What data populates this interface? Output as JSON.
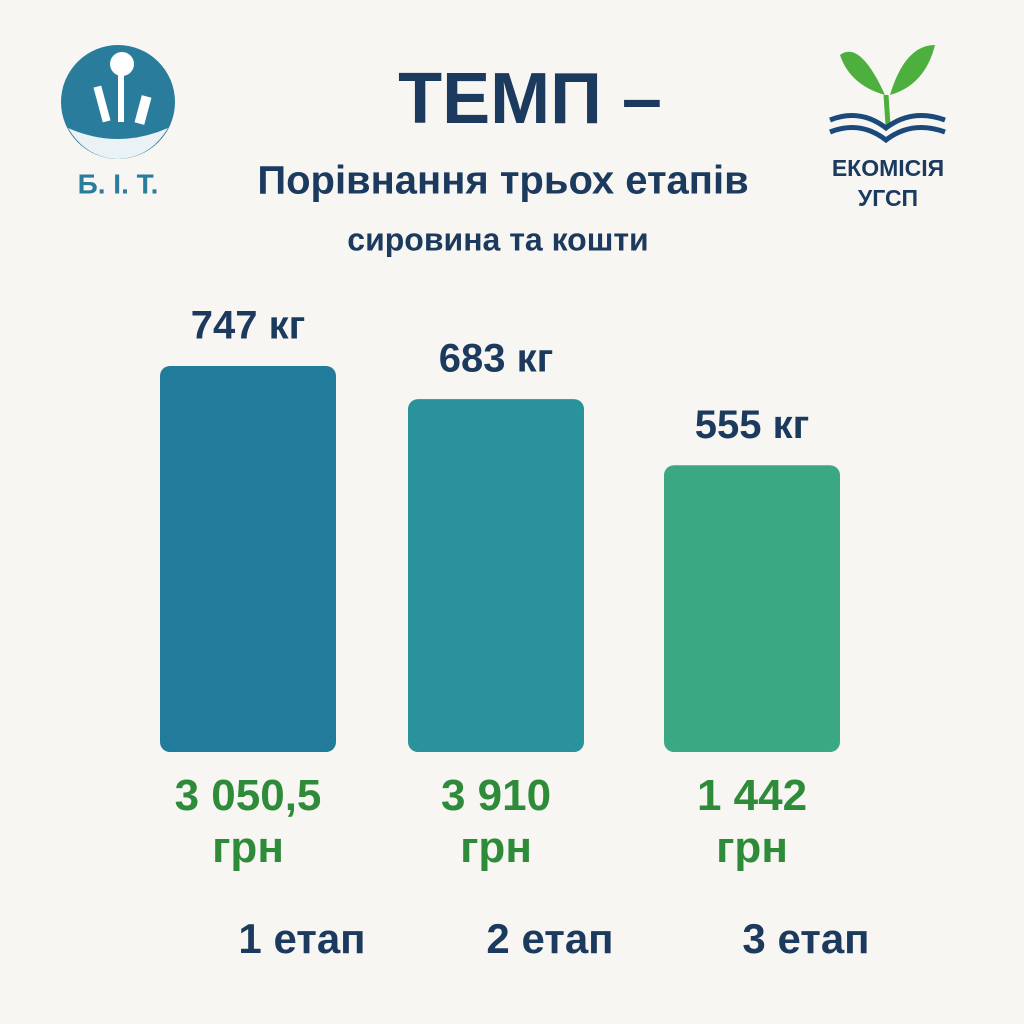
{
  "chart_data": {
    "type": "bar",
    "title": "ТЕМП –",
    "subtitle": "Порівнання трьох етапів",
    "caption": "сировина та кошти",
    "categories": [
      "1 етап",
      "2 етап",
      "3 етап"
    ],
    "values": [
      747,
      683,
      555
    ],
    "value_labels": [
      "747 кг",
      "683 кг",
      "555 кг"
    ],
    "colors": [
      "#217b9a",
      "#2a929a",
      "#3aa883"
    ],
    "costs": [
      3050.5,
      3910,
      1442
    ],
    "cost_labels": [
      "3 050,5 грн",
      "3 910 грн",
      "1 442 грн"
    ]
  },
  "logos": {
    "left": "Б. І. Т.",
    "right": [
      "ЕКОМІСІЯ",
      "УГСП"
    ]
  }
}
